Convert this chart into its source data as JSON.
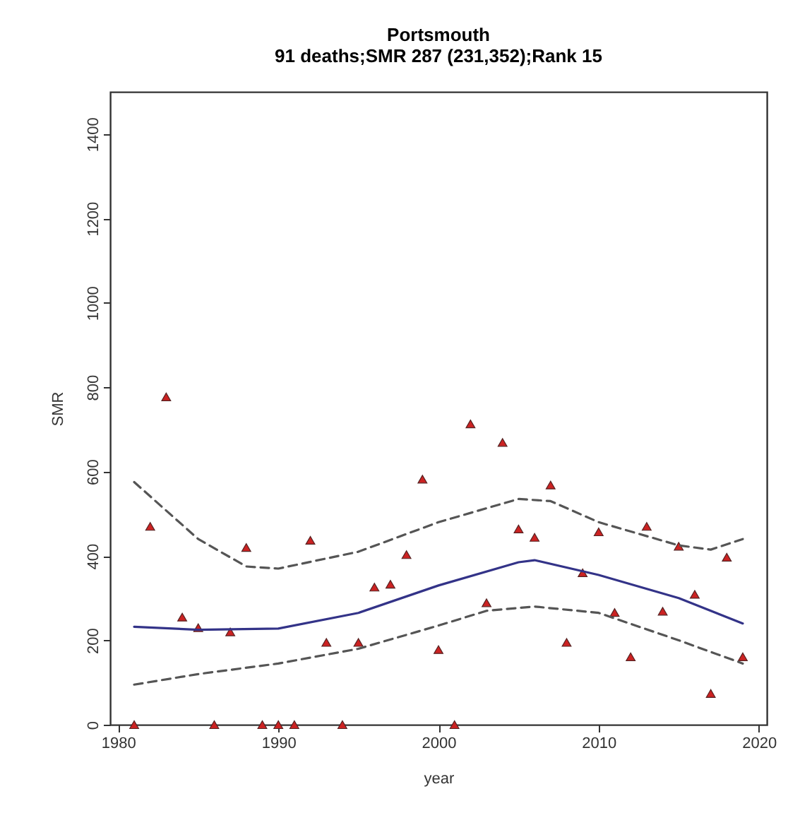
{
  "chart_data": {
    "type": "scatter",
    "title": "Portsmouth",
    "subtitle": "91 deaths;SMR 287 (231,352);Rank 15",
    "xlabel": "year",
    "ylabel": "SMR",
    "xlim": [
      1979.5,
      2020.5
    ],
    "xticks": [
      1980,
      1990,
      2000,
      2010,
      2020
    ],
    "ylim": [
      0,
      1500
    ],
    "yticks": [
      0,
      200,
      400,
      600,
      800,
      1000,
      1200,
      1400
    ],
    "grid": false,
    "series": [
      {
        "marker": "triangle",
        "color": "#cc2222",
        "x": [
          1981,
          1982,
          1983,
          1984,
          1985,
          1986,
          1987,
          1988,
          1989,
          1990,
          1991,
          1992,
          1993,
          1994,
          1995,
          1996,
          1997,
          1998,
          1999,
          2000,
          2001,
          2002,
          2003,
          2004,
          2005,
          2006,
          2007,
          2008,
          2009,
          2010,
          2011,
          2012,
          2013,
          2014,
          2015,
          2016,
          2017,
          2018,
          2019
        ],
        "values": [
          0,
          470,
          777,
          255,
          230,
          0,
          220,
          420,
          0,
          0,
          0,
          437,
          195,
          0,
          195,
          326,
          333,
          403,
          582,
          178,
          0,
          713,
          289,
          669,
          464,
          444,
          568,
          195,
          360,
          457,
          266,
          161,
          470,
          269,
          423,
          309,
          74,
          397,
          161
        ]
      },
      {
        "type": "line",
        "line_style": "solid",
        "color": "#333388",
        "x": [
          1981,
          1985,
          1990,
          1995,
          2000,
          2005,
          2006,
          2010,
          2015,
          2019
        ],
        "values": [
          232,
          225,
          228,
          265,
          330,
          385,
          390,
          355,
          300,
          240
        ]
      },
      {
        "type": "line",
        "line_style": "dashed",
        "color": "#555555",
        "x": [
          1981,
          1985,
          1988,
          1990,
          1995,
          2000,
          2005,
          2007,
          2010,
          2015,
          2017,
          2019
        ],
        "values": [
          575,
          440,
          375,
          370,
          410,
          480,
          535,
          530,
          480,
          425,
          415,
          440
        ]
      },
      {
        "type": "line",
        "line_style": "dashed",
        "color": "#555555",
        "x": [
          1981,
          1985,
          1990,
          1995,
          2000,
          2003,
          2006,
          2010,
          2015,
          2019
        ],
        "values": [
          95,
          120,
          145,
          180,
          235,
          270,
          280,
          265,
          200,
          145
        ]
      }
    ]
  }
}
